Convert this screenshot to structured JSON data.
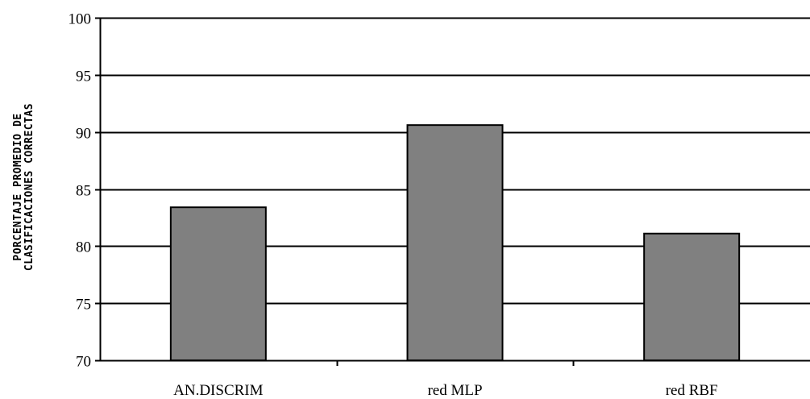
{
  "chart_data": {
    "type": "bar",
    "title": "",
    "xlabel": "",
    "ylabel_lines": [
      "PORCENTAJE PROMEDIO DE",
      "CLASIFICACIONES CORRECTAS"
    ],
    "categories": [
      "AN.DISCRIM",
      "red MLP",
      "red RBF"
    ],
    "values": [
      83.4,
      90.6,
      81.1
    ],
    "ylim": [
      70,
      100
    ],
    "yticks": [
      70,
      75,
      80,
      85,
      90,
      95,
      100
    ],
    "grid": true,
    "legend": "none",
    "colors": {
      "bar": "#808080",
      "bar_stroke": "#000000",
      "grid": "#000000",
      "background": "#ffffff"
    }
  }
}
